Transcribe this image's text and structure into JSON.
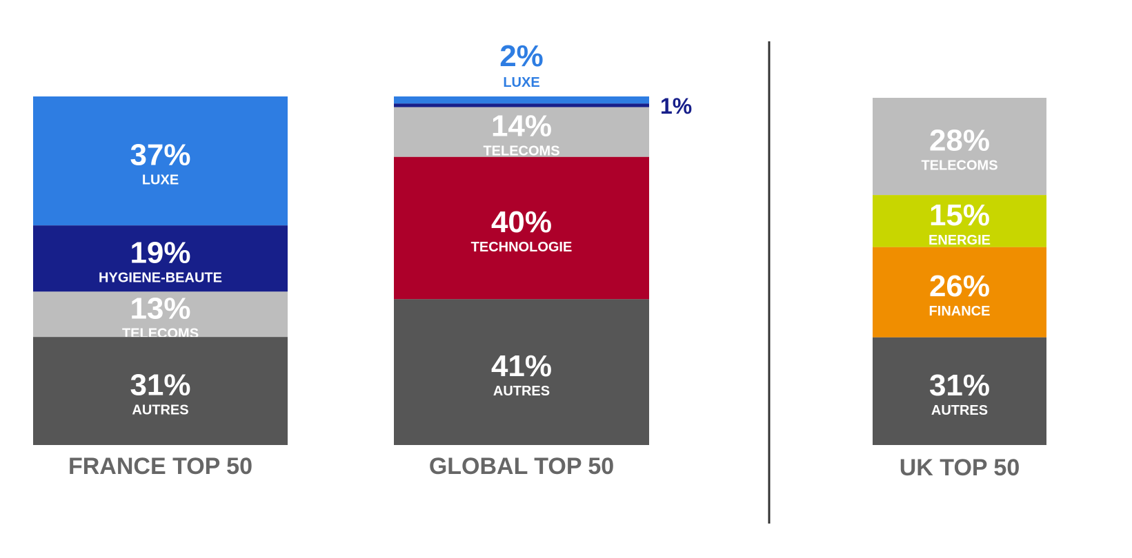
{
  "colors": {
    "luxe": "#2e7de2",
    "hygiene_beaute": "#171f8a",
    "telecoms": "#bdbdbd",
    "autres": "#565656",
    "technologie": "#ad002a",
    "energie": "#c8d600",
    "finance": "#f08e00",
    "title": "#666666",
    "divider": "#333333"
  },
  "chart_data": [
    {
      "type": "bar",
      "stacked": true,
      "title": "FRANCE TOP 50",
      "segments": [
        {
          "name": "LUXE",
          "value": 37,
          "label": "37%",
          "color": "#2e7de2"
        },
        {
          "name": "HYGIENE-BEAUTE",
          "value": 19,
          "label": "19%",
          "color": "#171f8a"
        },
        {
          "name": "TELECOMS",
          "value": 13,
          "label": "13%",
          "color": "#bdbdbd"
        },
        {
          "name": "AUTRES",
          "value": 31,
          "label": "31%",
          "color": "#565656"
        }
      ]
    },
    {
      "type": "bar",
      "stacked": true,
      "title": "GLOBAL TOP 50",
      "segments": [
        {
          "name": "LUXE",
          "value": 2,
          "label": "2%",
          "color": "#2e7de2"
        },
        {
          "name": "",
          "value": 1,
          "label": "1%",
          "color": "#171f8a"
        },
        {
          "name": "TELECOMS",
          "value": 14,
          "label": "14%",
          "color": "#bdbdbd"
        },
        {
          "name": "TECHNOLOGIE",
          "value": 40,
          "label": "40%",
          "color": "#ad002a"
        },
        {
          "name": "AUTRES",
          "value": 41,
          "label": "41%",
          "color": "#565656"
        }
      ]
    },
    {
      "type": "bar",
      "stacked": true,
      "title": "UK TOP 50",
      "segments": [
        {
          "name": "TELECOMS",
          "value": 28,
          "label": "28%",
          "color": "#bdbdbd"
        },
        {
          "name": "ENERGIE",
          "value": 15,
          "label": "15%",
          "color": "#c8d600"
        },
        {
          "name": "FINANCE",
          "value": 26,
          "label": "26%",
          "color": "#f08e00"
        },
        {
          "name": "AUTRES",
          "value": 31,
          "label": "31%",
          "color": "#565656"
        }
      ]
    }
  ]
}
